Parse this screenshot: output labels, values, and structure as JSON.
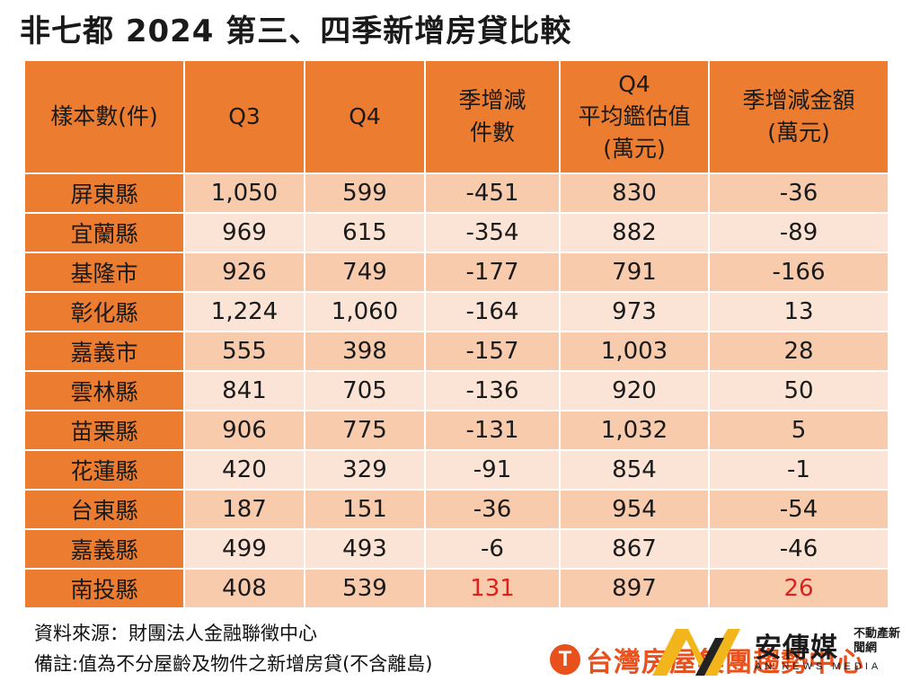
{
  "title": "非七都 2024 第三、四季新增房貸比較",
  "chart_data": {
    "type": "table",
    "title": "非七都 2024 第三、四季新增房貸比較",
    "columns": [
      "樣本數(件)",
      "Q3",
      "Q4",
      "季增減\n件數",
      "Q4\n平均鑑估值\n(萬元)",
      "季增減金額\n(萬元)"
    ],
    "rows": [
      {
        "name": "屏東縣",
        "q3": "1,050",
        "q4": "599",
        "diff": "-451",
        "avg": "830",
        "amt": "-36"
      },
      {
        "name": "宜蘭縣",
        "q3": "969",
        "q4": "615",
        "diff": "-354",
        "avg": "882",
        "amt": "-89"
      },
      {
        "name": "基隆市",
        "q3": "926",
        "q4": "749",
        "diff": "-177",
        "avg": "791",
        "amt": "-166"
      },
      {
        "name": "彰化縣",
        "q3": "1,224",
        "q4": "1,060",
        "diff": "-164",
        "avg": "973",
        "amt": "13"
      },
      {
        "name": "嘉義市",
        "q3": "555",
        "q4": "398",
        "diff": "-157",
        "avg": "1,003",
        "amt": "28"
      },
      {
        "name": "雲林縣",
        "q3": "841",
        "q4": "705",
        "diff": "-136",
        "avg": "920",
        "amt": "50"
      },
      {
        "name": "苗栗縣",
        "q3": "906",
        "q4": "775",
        "diff": "-131",
        "avg": "1,032",
        "amt": "5"
      },
      {
        "name": "花蓮縣",
        "q3": "420",
        "q4": "329",
        "diff": "-91",
        "avg": "854",
        "amt": "-1"
      },
      {
        "name": "台東縣",
        "q3": "187",
        "q4": "151",
        "diff": "-36",
        "avg": "954",
        "amt": "-54"
      },
      {
        "name": "嘉義縣",
        "q3": "499",
        "q4": "493",
        "diff": "-6",
        "avg": "867",
        "amt": "-46"
      },
      {
        "name": "南投縣",
        "q3": "408",
        "q4": "539",
        "diff": "131",
        "avg": "897",
        "amt": "26",
        "highlight": true
      }
    ],
    "highlight_color": "#e0201c"
  },
  "notes": {
    "source": "資料來源：財團法人金融聯徵中心",
    "remark": "備註:值為不分屋齡及物件之新增房貸(不含離島)"
  },
  "brands": {
    "logo1_icon": "T",
    "logo1_text": "台灣房屋集團趨勢中心",
    "logo2_name": "安傳媒",
    "logo2_tag": "不動產新聞網",
    "logo2_sub": "AN NEWS MEDIA"
  },
  "colors": {
    "header": "#ec7c30",
    "row_odd": "#f7cbac",
    "row_even": "#fbe4d5",
    "logo_orange": "#e8501c",
    "logo_gold": "#f2b51c"
  }
}
